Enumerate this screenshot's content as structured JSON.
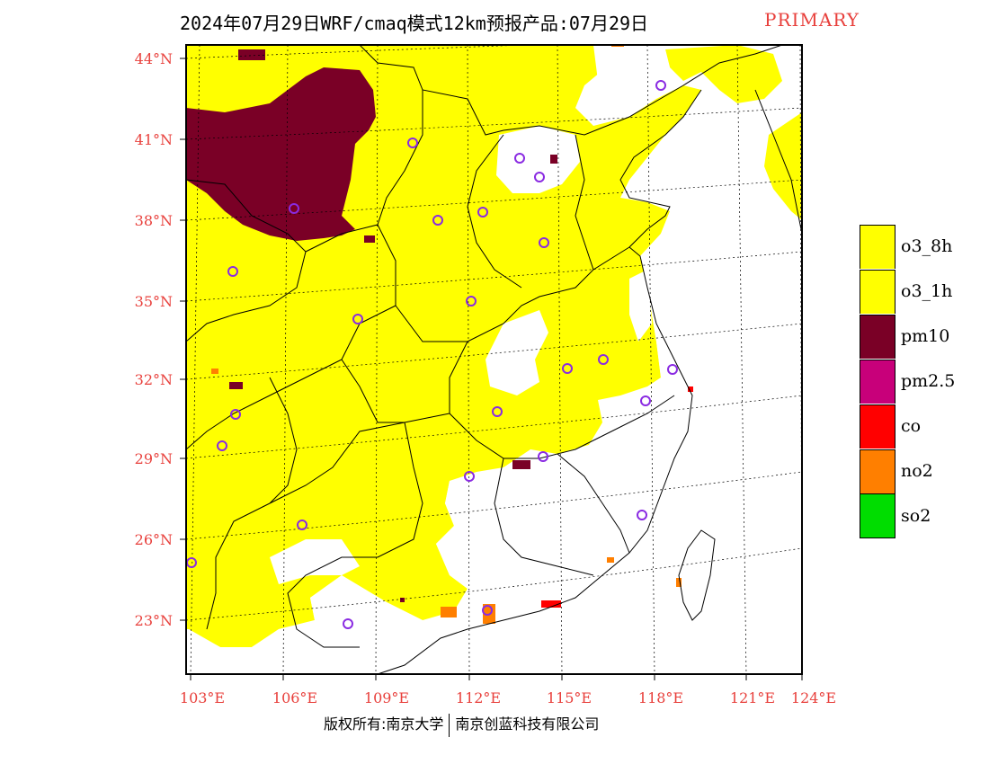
{
  "title": "2024年07月29日WRF/cmaq模式12km预报产品:07月29日",
  "badge": "PRIMARY",
  "colors": {
    "o3": "#ffff00",
    "pm10": "#7a0026",
    "pm25": "#c8007a",
    "co": "#ff0000",
    "no2": "#ff7f00",
    "so2": "#00dd00",
    "axis_label": "#e8403c",
    "station_ring": "#8a2be2"
  },
  "lat_labels": [
    "44°N",
    "41°N",
    "38°N",
    "35°N",
    "32°N",
    "29°N",
    "26°N",
    "23°N"
  ],
  "lon_labels": [
    "103°E",
    "106°E",
    "109°E",
    "112°E",
    "115°E",
    "118°E",
    "121°E",
    "124°E"
  ],
  "legend": [
    {
      "label": "o3_8h",
      "color": "#ffff00"
    },
    {
      "label": "o3_1h",
      "color": "#ffff00"
    },
    {
      "label": "pm10",
      "color": "#7a0026"
    },
    {
      "label": "pm2.5",
      "color": "#c8007a"
    },
    {
      "label": "co",
      "color": "#ff0000"
    },
    {
      "label": "no2",
      "color": "#ff7f00"
    },
    {
      "label": "so2",
      "color": "#00dd00"
    }
  ],
  "copyright": {
    "left": "版权所有:南京大学",
    "right": "南京创蓝科技有限公司"
  }
}
